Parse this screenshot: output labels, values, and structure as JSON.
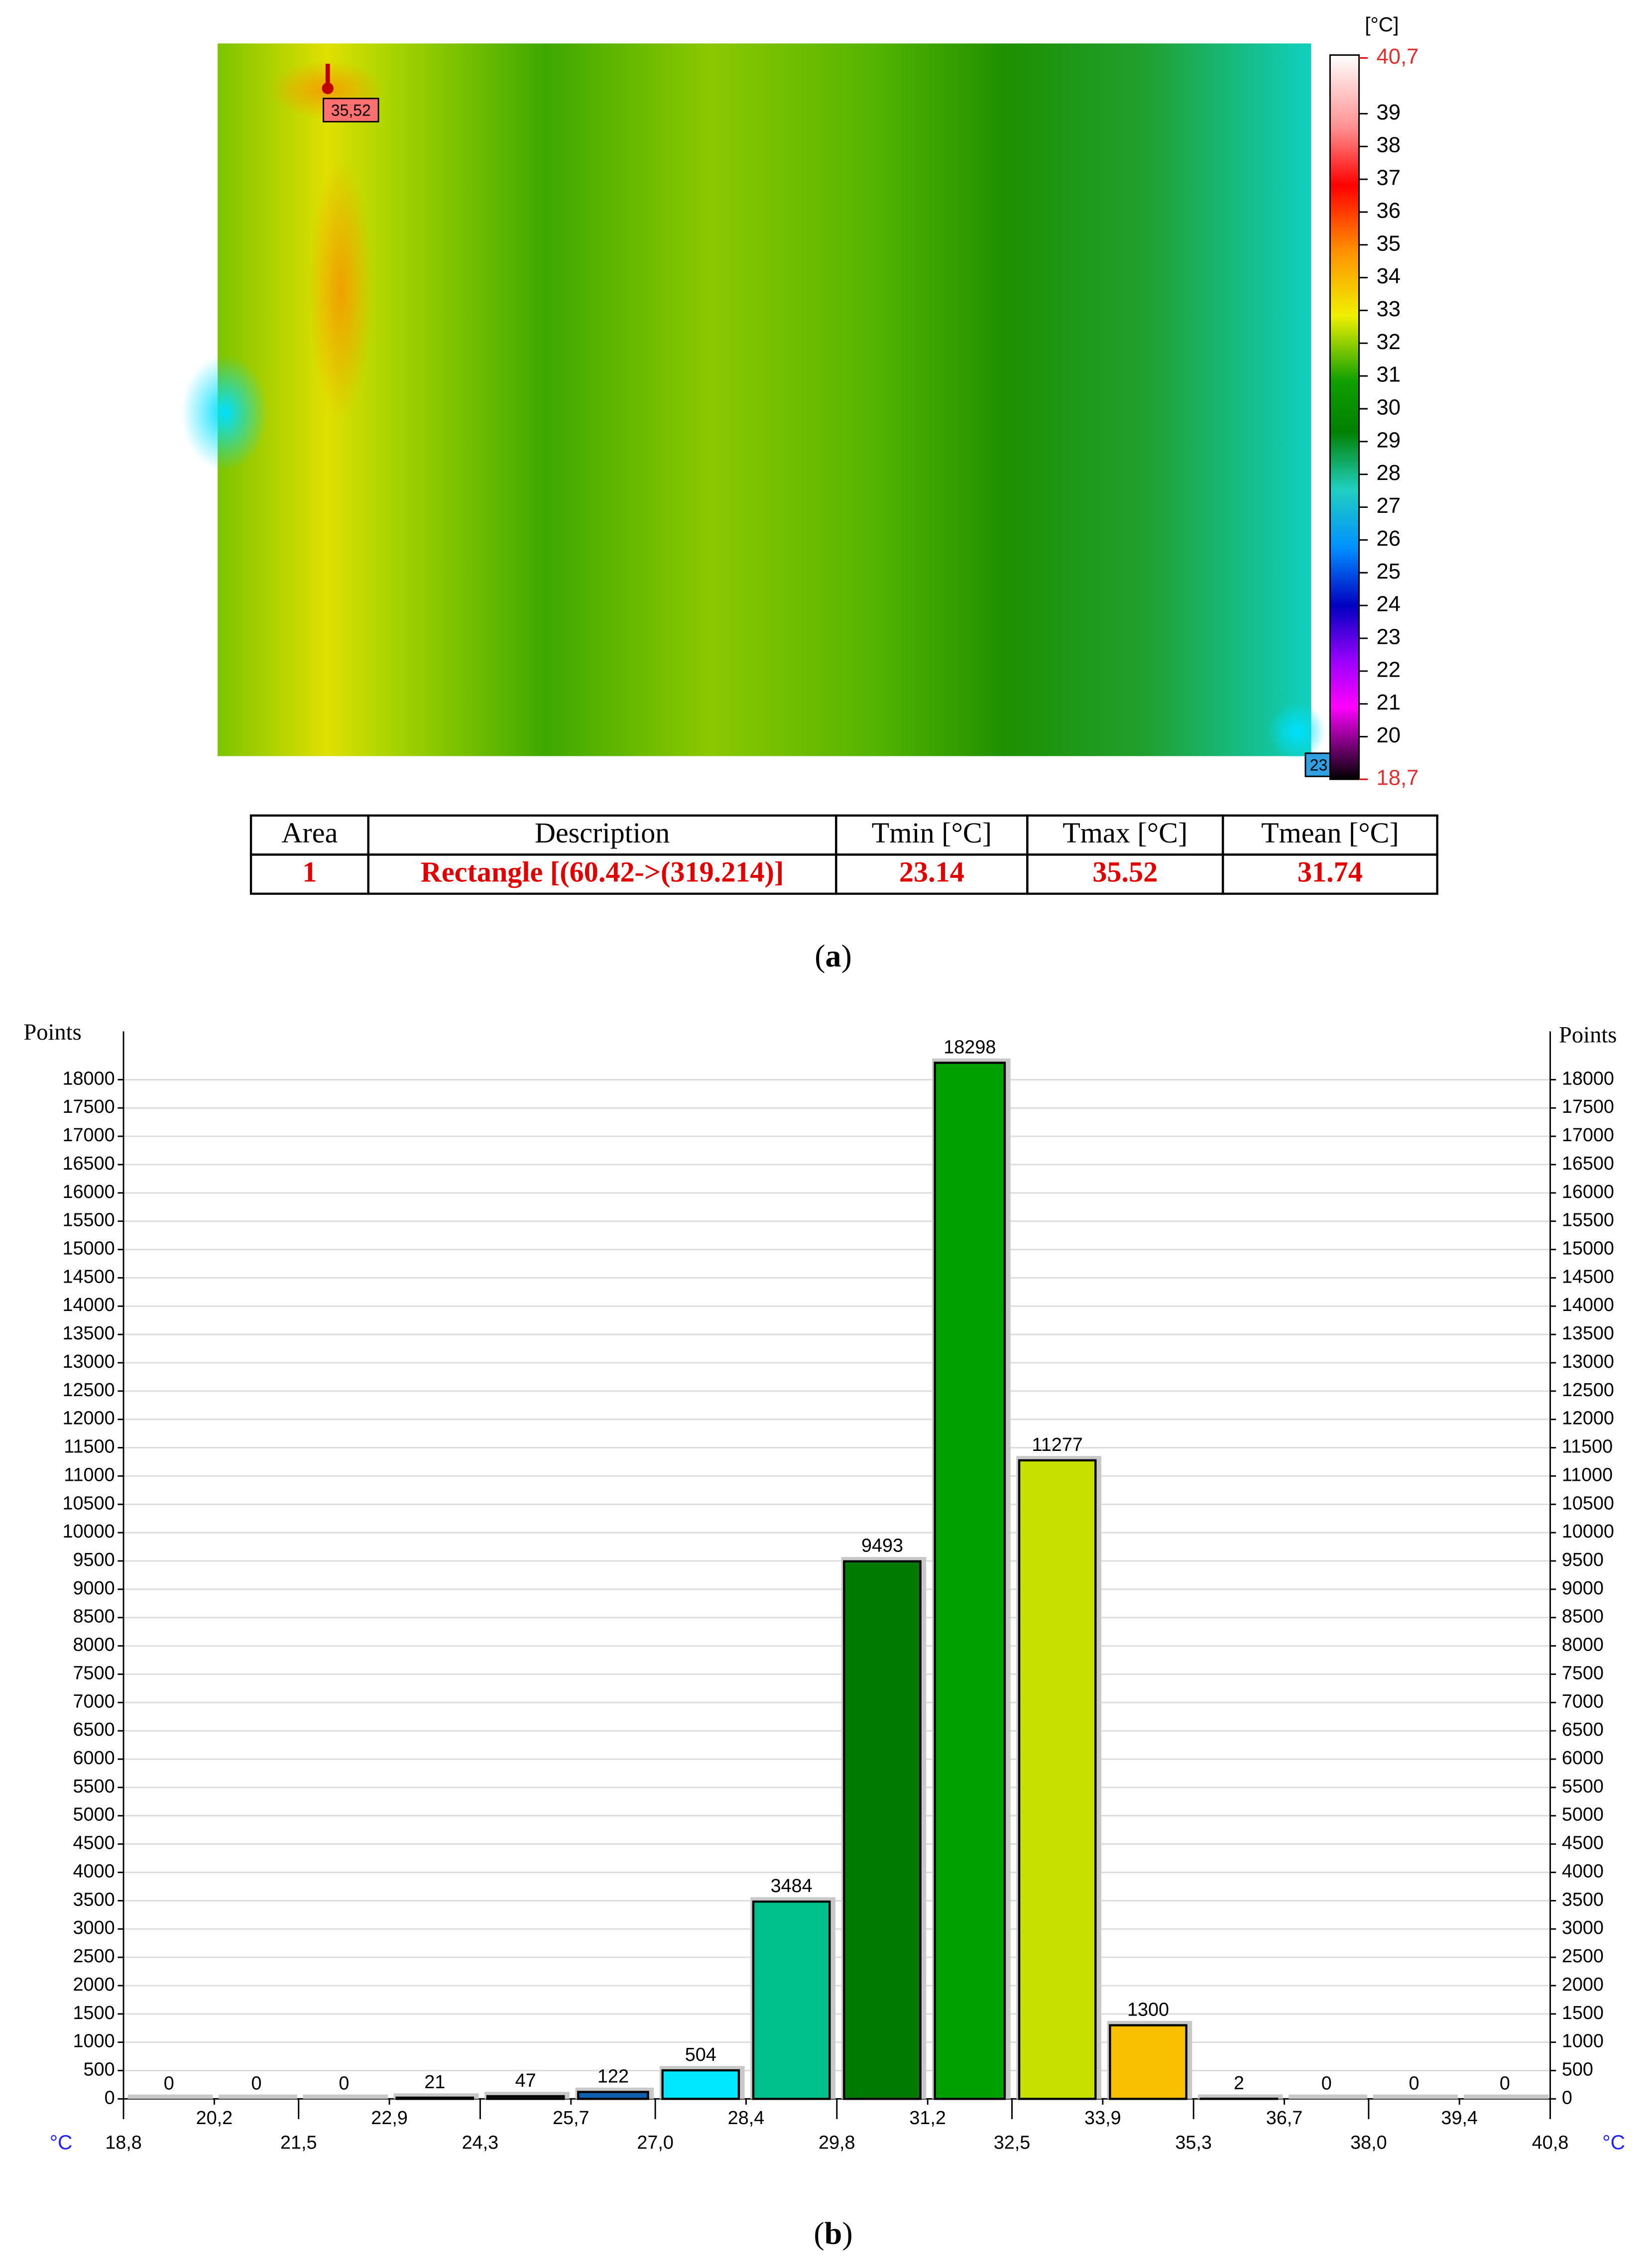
{
  "thermal": {
    "unit": "[°C]",
    "lim": [
      18.7,
      40.7
    ],
    "ticks": [
      {
        "value": 40.7,
        "label": "40,7"
      },
      39,
      38,
      37,
      36,
      35,
      34,
      33,
      32,
      31,
      30,
      29,
      28,
      27,
      26,
      25,
      24,
      23,
      22,
      21,
      20,
      {
        "value": 18.7,
        "label": "18,7"
      }
    ],
    "max_marker": "35,52",
    "min_marker": "23"
  },
  "table": {
    "header": [
      "Area",
      "Description",
      "Tmin [°C]",
      "Tmax [°C]",
      "Tmean [°C]"
    ],
    "rows": [
      [
        "1",
        "Rectangle [(60.42->(319.214)]",
        "23.14",
        "35.52",
        "31.74"
      ]
    ]
  },
  "caption_a": [
    "(",
    "a",
    ")"
  ],
  "caption_b": [
    "(",
    "b",
    ")"
  ],
  "chart_data": {
    "type": "histogram",
    "y_label": "Points",
    "y2_label": "Points",
    "x_unit": "°C",
    "x2_unit": "°C",
    "bins": [
      18.8,
      20.2,
      21.5,
      22.9,
      24.3,
      25.7,
      27.0,
      28.4,
      29.8,
      31.2,
      32.5,
      33.9,
      35.3,
      36.7,
      38.0,
      39.4,
      40.8
    ],
    "values": [
      0,
      0,
      0,
      21,
      47,
      122,
      504,
      3484,
      9493,
      18298,
      11277,
      1300,
      2,
      0,
      0,
      0
    ],
    "colors": [
      "#c8c8c8",
      "#c8c8c8",
      "#c8c8c8",
      "#c8c8c8",
      "#202020",
      "#1060b0",
      "#00e8ff",
      "#00c08c",
      "#007a00",
      "#00a000",
      "#c8e000",
      "#f8c000",
      "#c8c8c8",
      "#c8c8c8",
      "#c8c8c8",
      "#c8c8c8"
    ],
    "xlim": [
      18.8,
      40.8
    ],
    "xticks": [
      {
        "value": 18.8,
        "label": "18,8"
      },
      {
        "value": 20.2,
        "label": "20,2"
      },
      {
        "value": 21.5,
        "label": "21,5"
      },
      {
        "value": 22.9,
        "label": "22,9"
      },
      {
        "value": 24.3,
        "label": "24,3"
      },
      {
        "value": 25.7,
        "label": "25,7"
      },
      {
        "value": 27.0,
        "label": "27,0"
      },
      {
        "value": 28.4,
        "label": "28,4"
      },
      {
        "value": 29.8,
        "label": "29,8"
      },
      {
        "value": 31.2,
        "label": "31,2"
      },
      {
        "value": 32.5,
        "label": "32,5"
      },
      {
        "value": 33.9,
        "label": "33,9"
      },
      {
        "value": 35.3,
        "label": "35,3"
      },
      {
        "value": 36.7,
        "label": "36,7"
      },
      {
        "value": 38.0,
        "label": "38,0"
      },
      {
        "value": 39.4,
        "label": "39,4"
      },
      {
        "value": 40.8,
        "label": "40,8"
      }
    ],
    "ylim": [
      0,
      18700
    ],
    "yticks": [
      0,
      500,
      1000,
      1500,
      2000,
      2500,
      3000,
      3500,
      4000,
      4500,
      5000,
      5500,
      6000,
      6500,
      7000,
      7500,
      8000,
      8500,
      9000,
      9500,
      10000,
      10500,
      11000,
      11500,
      12000,
      12500,
      13000,
      13500,
      14000,
      14500,
      15000,
      15500,
      16000,
      16500,
      17000,
      17500,
      18000
    ],
    "grid": true
  }
}
